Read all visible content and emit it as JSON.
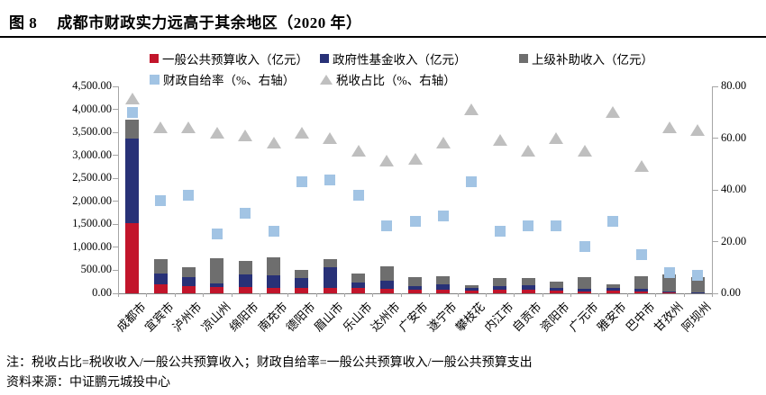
{
  "page": {
    "figure_label": "图 8",
    "title": "成都市财政实力远高于其余地区（2020 年）",
    "note": "注：税收占比=税收收入/一般公共预算收入；财政自给率=一般公共预算收入/一般公共预算支出",
    "source": "资料来源：中证鹏元城投中心"
  },
  "chart_data": {
    "type": "bar",
    "title": "成都市财政实力远高于其余地区（2020年）",
    "legend_position": "top",
    "grid": false,
    "categories": [
      "成都市",
      "宜宾市",
      "泸州市",
      "凉山州",
      "绵阳市",
      "南充市",
      "德阳市",
      "眉山市",
      "乐山市",
      "达州市",
      "广安市",
      "遂宁市",
      "攀枝花",
      "内江市",
      "自贡市",
      "资阳市",
      "广元市",
      "雅安市",
      "巴中市",
      "甘孜州",
      "阿坝州"
    ],
    "series": [
      {
        "name": "一般公共预算收入（亿元）",
        "type": "bar-stack",
        "axis": "left",
        "color": "#C2152B",
        "values": [
          1520,
          190,
          150,
          135,
          145,
          125,
          125,
          115,
          125,
          100,
          70,
          85,
          65,
          70,
          85,
          50,
          45,
          50,
          35,
          20,
          10
        ]
      },
      {
        "name": "政府性基金收入（亿元）",
        "type": "bar-stack",
        "axis": "left",
        "color": "#283177",
        "values": [
          1840,
          240,
          200,
          85,
          275,
          260,
          210,
          455,
          110,
          170,
          80,
          110,
          60,
          85,
          90,
          70,
          45,
          65,
          65,
          20,
          5
        ]
      },
      {
        "name": "上级补助收入（亿元）",
        "type": "bar-stack",
        "axis": "left",
        "color": "#6E6E6E",
        "values": [
          410,
          305,
          225,
          550,
          290,
          405,
          175,
          165,
          195,
          325,
          210,
          175,
          60,
          185,
          150,
          140,
          255,
          75,
          270,
          375,
          340
        ]
      },
      {
        "name": "财政自给率（%、右轴）",
        "type": "scatter-square",
        "axis": "right",
        "color": "#A2C4E4",
        "values": [
          70,
          36,
          38,
          23,
          31,
          24,
          43,
          44,
          38,
          26,
          28,
          30,
          43,
          24,
          26,
          26,
          18,
          28,
          15,
          8,
          7
        ]
      },
      {
        "name": "税收占比（%、右轴）",
        "type": "scatter-triangle",
        "axis": "right",
        "color": "#BFBFBF",
        "values": [
          75,
          64,
          64,
          62,
          61,
          58,
          62,
          60,
          55,
          51,
          52,
          58,
          71,
          59,
          55,
          60,
          55,
          70,
          49,
          64,
          63
        ]
      }
    ],
    "left_axis": {
      "min": 0,
      "max": 4500,
      "tick_labels": [
        "4,500.00",
        "4,000.00",
        "3,500.00",
        "3,000.00",
        "2,500.00",
        "2,000.00",
        "1,500.00",
        "1,000.00",
        "500.00",
        "0.00"
      ]
    },
    "right_axis": {
      "min": 0,
      "max": 80,
      "tick_labels": [
        "80.00",
        "60.00",
        "40.00",
        "20.00",
        "0.00"
      ]
    }
  }
}
